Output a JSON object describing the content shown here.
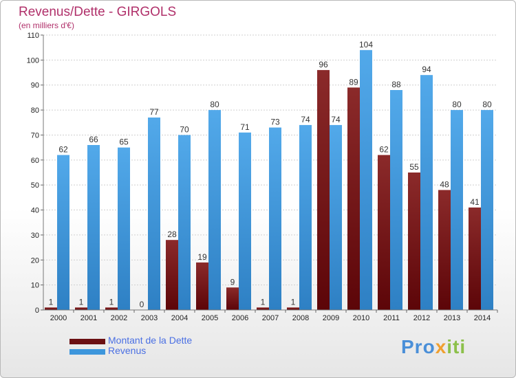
{
  "title": "Revenus/Dette - GIRGOLS",
  "subtitle": "(en milliers d'€)",
  "logo": {
    "text": "Proxiti",
    "parts": [
      "Pro",
      "x",
      "iti"
    ]
  },
  "colors": {
    "dette": "#7a1a1a",
    "revenus": "#3d96dc",
    "axis_text": "#222222",
    "title": "#b0306a",
    "legend_text": "#4a6fe3"
  },
  "legend": [
    {
      "label": "Montant de la Dette",
      "color": "#6b0f12"
    },
    {
      "label": "Revenus",
      "color": "#3d96dc"
    }
  ],
  "chart_data": {
    "type": "bar",
    "title": "Revenus/Dette - GIRGOLS",
    "subtitle": "(en milliers d'€)",
    "xlabel": "",
    "ylabel": "",
    "ylim": [
      0,
      110
    ],
    "yticks": [
      0,
      10,
      20,
      30,
      40,
      50,
      60,
      70,
      80,
      90,
      100,
      110
    ],
    "grid": true,
    "legend_position": "bottom-left",
    "categories": [
      "2000",
      "2001",
      "2002",
      "2003",
      "2004",
      "2005",
      "2006",
      "2007",
      "2008",
      "2009",
      "2010",
      "2011",
      "2012",
      "2013",
      "2014"
    ],
    "series": [
      {
        "name": "Montant de la Dette",
        "values": [
          1,
          1,
          1,
          0,
          28,
          19,
          9,
          1,
          1,
          96,
          89,
          62,
          55,
          48,
          41
        ]
      },
      {
        "name": "Revenus",
        "values": [
          62,
          66,
          65,
          77,
          70,
          80,
          71,
          73,
          74,
          74,
          104,
          88,
          94,
          80,
          80
        ]
      }
    ]
  }
}
